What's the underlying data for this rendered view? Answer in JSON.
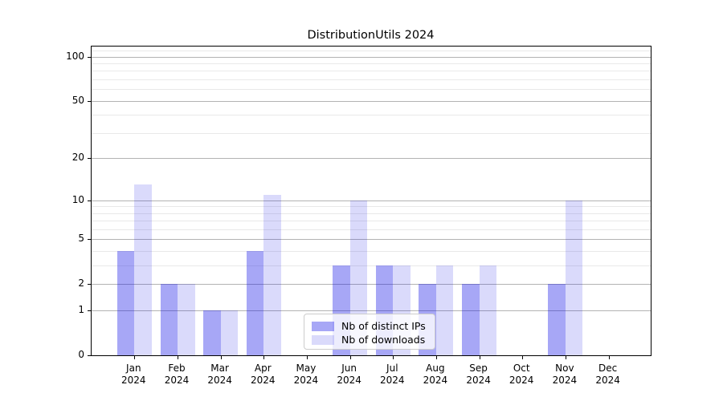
{
  "chart_data": {
    "type": "bar",
    "title": "DistributionUtils 2024",
    "x_months": [
      "Jan",
      "Feb",
      "Mar",
      "Apr",
      "May",
      "Jun",
      "Jul",
      "Aug",
      "Sep",
      "Oct",
      "Nov",
      "Dec"
    ],
    "x_year": "2024",
    "series": [
      {
        "name": "Nb of distinct IPs",
        "color": "rgba(10, 10, 230, 0.36)",
        "color_hex": "#a6a6f2",
        "values": [
          4,
          2,
          1,
          4,
          0,
          3,
          3,
          2,
          2,
          0,
          2,
          0
        ]
      },
      {
        "name": "Nb of downloads",
        "color": "rgba(10, 10, 230, 0.15)",
        "color_hex": "#d9d9fa",
        "values": [
          13,
          2,
          1,
          11,
          0,
          10,
          3,
          3,
          3,
          0,
          10,
          0
        ]
      }
    ],
    "yscale": "log1p",
    "ylim": [
      0,
      117
    ],
    "y_ticks": [
      0,
      1,
      2,
      5,
      10,
      20,
      50,
      100
    ],
    "y_minor_ticks": [
      3,
      4,
      6,
      7,
      8,
      9,
      30,
      40,
      60,
      70,
      80,
      90,
      110
    ],
    "grid": true,
    "legend_position": "lower center"
  },
  "colors": {
    "grid_major": "#b3b3b3",
    "grid_minor": "#e9e9e9",
    "spine": "#000000",
    "legend_border": "#cccccc",
    "background": "#ffffff"
  }
}
